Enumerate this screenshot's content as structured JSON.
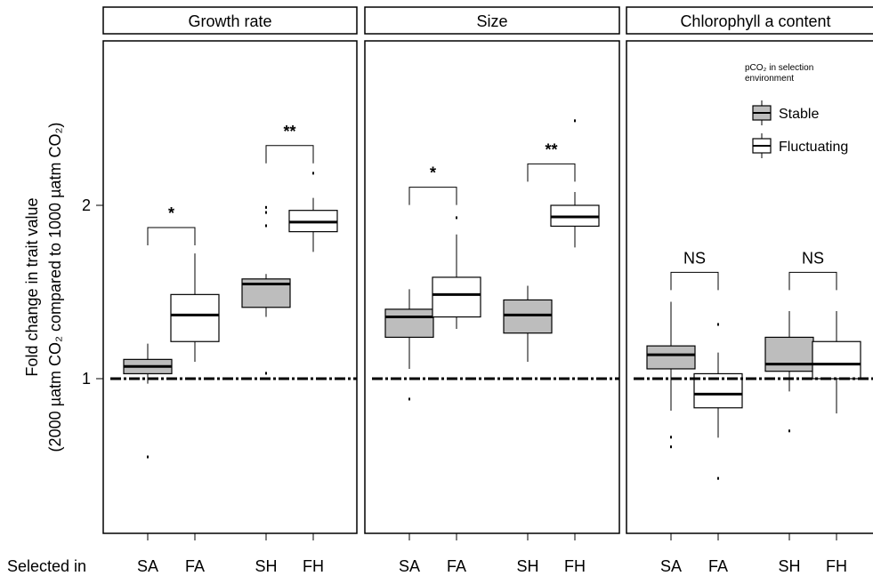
{
  "chart_data": {
    "type": "boxplot",
    "ylabel_line1": "Fold change in trait value",
    "ylabel_line2": "(2000 µatm CO₂ compared to 1000 µatm CO₂)",
    "xlabel": "Selected in",
    "y_ticks": [
      1,
      2
    ],
    "y_tick_labels": [
      "1",
      "2"
    ],
    "categories": [
      "SA",
      "FA",
      "SH",
      "FH"
    ],
    "reference_line": 1,
    "colors": {
      "stable": "#bdbdbd",
      "fluctuating": "#ffffff"
    },
    "legend": {
      "title_line1": "pCO₂ in selection",
      "title_line2": "environment",
      "entries": [
        {
          "name": "Stable",
          "key": "stable"
        },
        {
          "name": "Fluctuating",
          "key": "fluctuating"
        }
      ]
    },
    "panels": [
      {
        "title": "Growth rate",
        "groups": [
          {
            "cat": "SA",
            "type": "stable",
            "min": 0.98,
            "q1": 1.02,
            "median": 1.05,
            "q3": 1.08,
            "max": 1.15,
            "outliers": [
              0.73
            ]
          },
          {
            "cat": "FA",
            "type": "fluctuating",
            "min": 1.07,
            "q1": 1.16,
            "median": 1.29,
            "q3": 1.4,
            "max": 1.65,
            "outliers": []
          },
          {
            "cat": "SH",
            "type": "stable",
            "min": 1.28,
            "q1": 1.33,
            "median": 1.46,
            "q3": 1.49,
            "max": 1.52,
            "outliers": [
              1.84,
              1.94,
              1.98,
              1.02
            ]
          },
          {
            "cat": "FH",
            "type": "fluctuating",
            "min": 1.66,
            "q1": 1.8,
            "median": 1.87,
            "q3": 1.96,
            "max": 2.06,
            "outliers": [
              2.27
            ]
          }
        ],
        "comparisons": [
          {
            "pair": [
              0,
              1
            ],
            "label": "*",
            "y": 1.83
          },
          {
            "pair": [
              2,
              3
            ],
            "label": "**",
            "y": 2.54
          }
        ]
      },
      {
        "title": "Size",
        "groups": [
          {
            "cat": "SA",
            "type": "stable",
            "min": 1.04,
            "q1": 1.18,
            "median": 1.28,
            "q3": 1.32,
            "max": 1.43,
            "outliers": [
              0.92
            ]
          },
          {
            "cat": "FA",
            "type": "fluctuating",
            "min": 1.22,
            "q1": 1.28,
            "median": 1.4,
            "q3": 1.5,
            "max": 1.78,
            "outliers": [
              1.9
            ]
          },
          {
            "cat": "SH",
            "type": "stable",
            "min": 1.07,
            "q1": 1.2,
            "median": 1.29,
            "q3": 1.37,
            "max": 1.45,
            "outliers": []
          },
          {
            "cat": "FH",
            "type": "fluctuating",
            "min": 1.69,
            "q1": 1.84,
            "median": 1.91,
            "q3": 2.0,
            "max": 2.11,
            "outliers": [
              2.8
            ]
          }
        ],
        "comparisons": [
          {
            "pair": [
              0,
              1
            ],
            "label": "*",
            "y": 2.15
          },
          {
            "pair": [
              2,
              3
            ],
            "label": "**",
            "y": 2.36
          }
        ]
      },
      {
        "title": "Chlorophyll a content",
        "groups": [
          {
            "cat": "SA",
            "type": "stable",
            "min": 0.88,
            "q1": 1.04,
            "median": 1.1,
            "q3": 1.14,
            "max": 1.36,
            "outliers": [
              0.76,
              0.79
            ]
          },
          {
            "cat": "FA",
            "type": "fluctuating",
            "min": 0.79,
            "q1": 0.89,
            "median": 0.94,
            "q3": 1.02,
            "max": 1.11,
            "outliers": [
              0.67,
              1.24
            ]
          },
          {
            "cat": "SH",
            "type": "stable",
            "min": 0.95,
            "q1": 1.03,
            "median": 1.06,
            "q3": 1.18,
            "max": 1.31,
            "outliers": [
              0.81,
              0.51
            ]
          },
          {
            "cat": "FH",
            "type": "fluctuating",
            "min": 0.87,
            "q1": 1.0,
            "median": 1.06,
            "q3": 1.16,
            "max": 1.31,
            "outliers": []
          }
        ],
        "comparisons": [
          {
            "pair": [
              0,
              1
            ],
            "label": "NS",
            "y": 1.53
          },
          {
            "pair": [
              2,
              3
            ],
            "label": "NS",
            "y": 1.53
          }
        ]
      }
    ]
  }
}
